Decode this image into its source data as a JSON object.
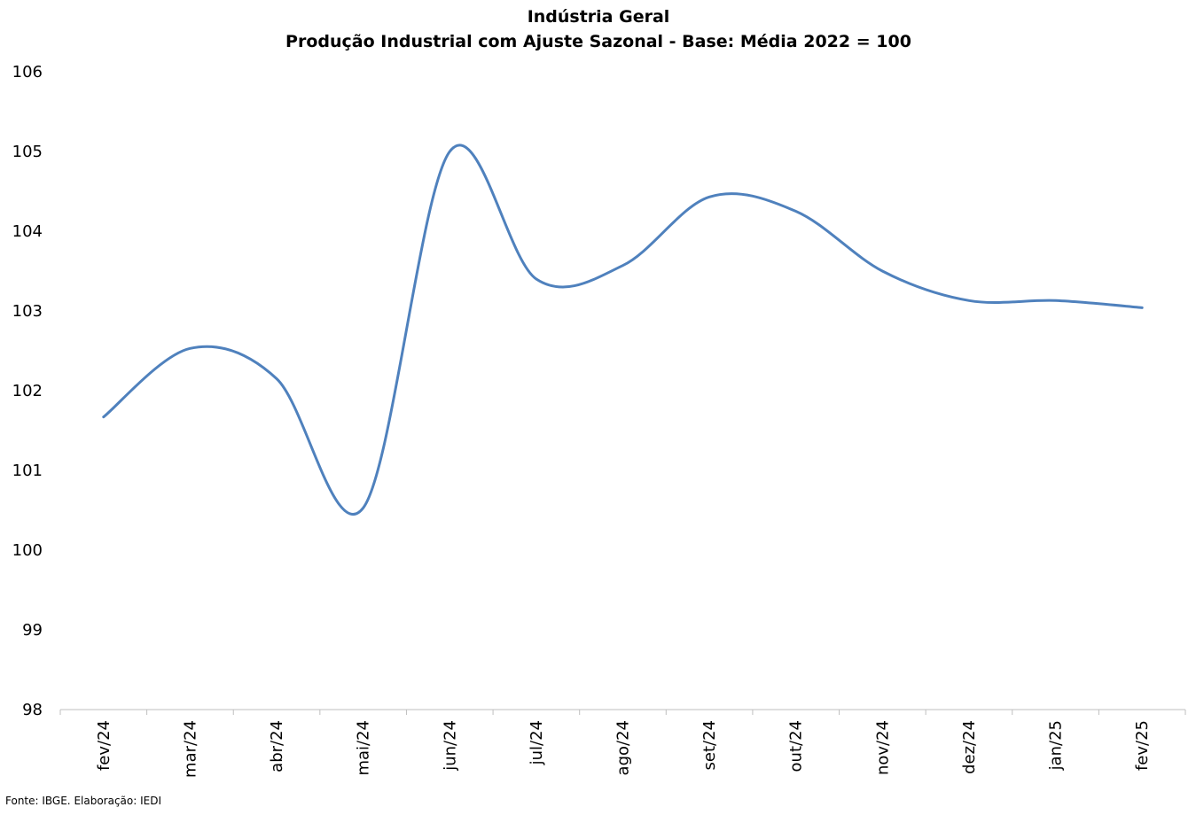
{
  "chart_data": {
    "type": "line",
    "title": "Indústria Geral",
    "subtitle": "Produção Industrial com Ajuste Sazonal - Base: Média 2022 = 100",
    "categories": [
      "fev/24",
      "mar/24",
      "abr/24",
      "mai/24",
      "jun/24",
      "jul/24",
      "ago/24",
      "set/24",
      "out/24",
      "nov/24",
      "dez/24",
      "jan/25",
      "fev/25"
    ],
    "series": [
      {
        "values": [
          101.67,
          102.53,
          102.15,
          100.53,
          105.0,
          103.4,
          103.57,
          104.43,
          104.25,
          103.5,
          103.13,
          103.13,
          103.04
        ]
      }
    ],
    "ylim": [
      98,
      106
    ],
    "yticks": [
      "98",
      "99",
      "100",
      "101",
      "102",
      "103",
      "104",
      "105",
      "106"
    ],
    "xlabel": "",
    "ylabel": "",
    "grid": false,
    "smooth": true,
    "line_color": "#4F81BD"
  },
  "source": "Fonte: IBGE. Elaboração: IEDI"
}
